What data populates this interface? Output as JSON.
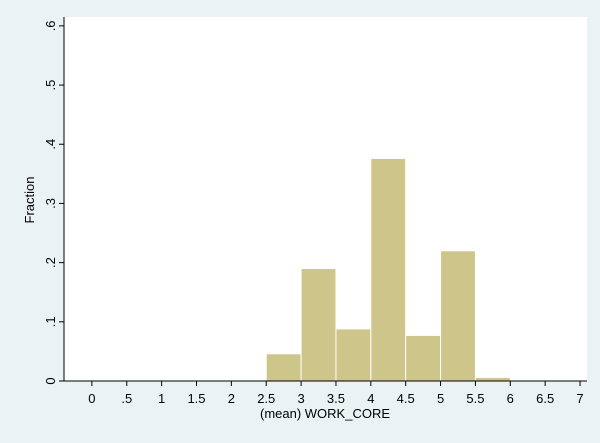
{
  "chart_data": {
    "type": "bar",
    "title": "",
    "xlabel": "(mean) WORK_CORE",
    "ylabel": "Fraction",
    "xlim": [
      -0.4,
      7.1
    ],
    "ylim": [
      0,
      0.615
    ],
    "x_ticks": [
      0,
      0.5,
      1,
      1.5,
      2,
      2.5,
      3,
      3.5,
      4,
      4.5,
      5,
      5.5,
      6,
      6.5,
      7
    ],
    "x_tick_labels": [
      "0",
      ".5",
      "1",
      "1.5",
      "2",
      "2.5",
      "3",
      "3.5",
      "4",
      "4.5",
      "5",
      "5.5",
      "6",
      "6.5",
      "7"
    ],
    "y_ticks": [
      0,
      0.1,
      0.2,
      0.3,
      0.4,
      0.5,
      0.6
    ],
    "y_tick_labels": [
      "0",
      ".1",
      ".2",
      ".3",
      ".4",
      ".5",
      ".6"
    ],
    "bins": [
      {
        "x0": 2.5,
        "x1": 3.0,
        "value": 0.046
      },
      {
        "x0": 3.0,
        "x1": 3.5,
        "value": 0.19
      },
      {
        "x0": 3.5,
        "x1": 4.0,
        "value": 0.088
      },
      {
        "x0": 4.0,
        "x1": 4.5,
        "value": 0.376
      },
      {
        "x0": 4.5,
        "x1": 5.0,
        "value": 0.077
      },
      {
        "x0": 5.0,
        "x1": 5.5,
        "value": 0.22
      },
      {
        "x0": 5.5,
        "x1": 6.0,
        "value": 0.006
      }
    ],
    "grid": false,
    "legend": "none",
    "colors": {
      "bar_fill": "#cdc58a",
      "bar_stroke": "#ffffff",
      "plot_bg": "#ffffff",
      "outer_bg": "#eaf2f3",
      "axis": "#000000"
    }
  }
}
